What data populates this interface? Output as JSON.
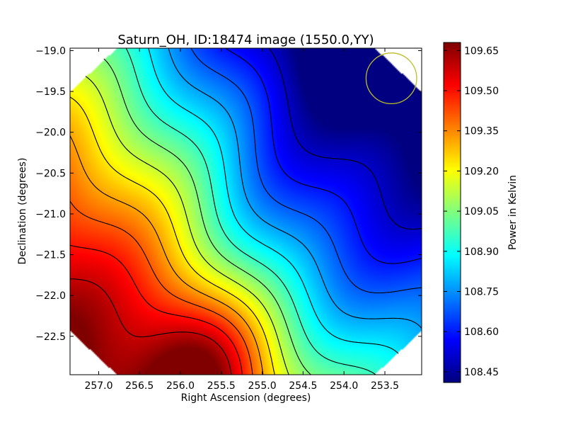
{
  "chart_data": {
    "type": "heatmap",
    "title": "Saturn_OH, ID:18474 image (1550.0,YY)",
    "xlabel": "Right Ascension (degrees)",
    "ylabel": "Declination (degrees)",
    "colorbar_label": "Power in Kelvin",
    "colormap": "jet",
    "xlim": [
      257.35,
      253.05
    ],
    "ylim": [
      -22.97,
      -18.97
    ],
    "x_ticks": [
      {
        "value": 257.0,
        "label": "257.0"
      },
      {
        "value": 256.5,
        "label": "256.5"
      },
      {
        "value": 256.0,
        "label": "256.0"
      },
      {
        "value": 255.5,
        "label": "255.5"
      },
      {
        "value": 255.0,
        "label": "255.0"
      },
      {
        "value": 254.5,
        "label": "254.5"
      },
      {
        "value": 254.0,
        "label": "254.0"
      },
      {
        "value": 253.5,
        "label": "253.5"
      }
    ],
    "y_ticks": [
      {
        "value": -19.0,
        "label": "−19.0"
      },
      {
        "value": -19.5,
        "label": "−19.5"
      },
      {
        "value": -20.0,
        "label": "−20.0"
      },
      {
        "value": -20.5,
        "label": "−20.5"
      },
      {
        "value": -21.0,
        "label": "−21.0"
      },
      {
        "value": -21.5,
        "label": "−21.5"
      },
      {
        "value": -22.0,
        "label": "−22.0"
      },
      {
        "value": -22.5,
        "label": "−22.5"
      }
    ],
    "colorbar_range": [
      108.41,
      109.68
    ],
    "colorbar_ticks": [
      {
        "value": 108.45,
        "label": "108.45"
      },
      {
        "value": 108.6,
        "label": "108.60"
      },
      {
        "value": 108.75,
        "label": "108.75"
      },
      {
        "value": 108.9,
        "label": "108.90"
      },
      {
        "value": 109.05,
        "label": "109.05"
      },
      {
        "value": 109.2,
        "label": "109.20"
      },
      {
        "value": 109.35,
        "label": "109.35"
      },
      {
        "value": 109.5,
        "label": "109.50"
      },
      {
        "value": 109.65,
        "label": "109.65"
      }
    ],
    "peak_max": {
      "x": 255.75,
      "y": -22.8,
      "value": 109.68
    },
    "peak_min": {
      "x": 253.8,
      "y": -19.05,
      "value": 108.41
    },
    "contour_count": 13,
    "beam_marker": {
      "x": 253.42,
      "y": -19.34,
      "radius_deg": 0.31,
      "color": "#bdbd2a"
    },
    "data_footprint": "octagon"
  }
}
